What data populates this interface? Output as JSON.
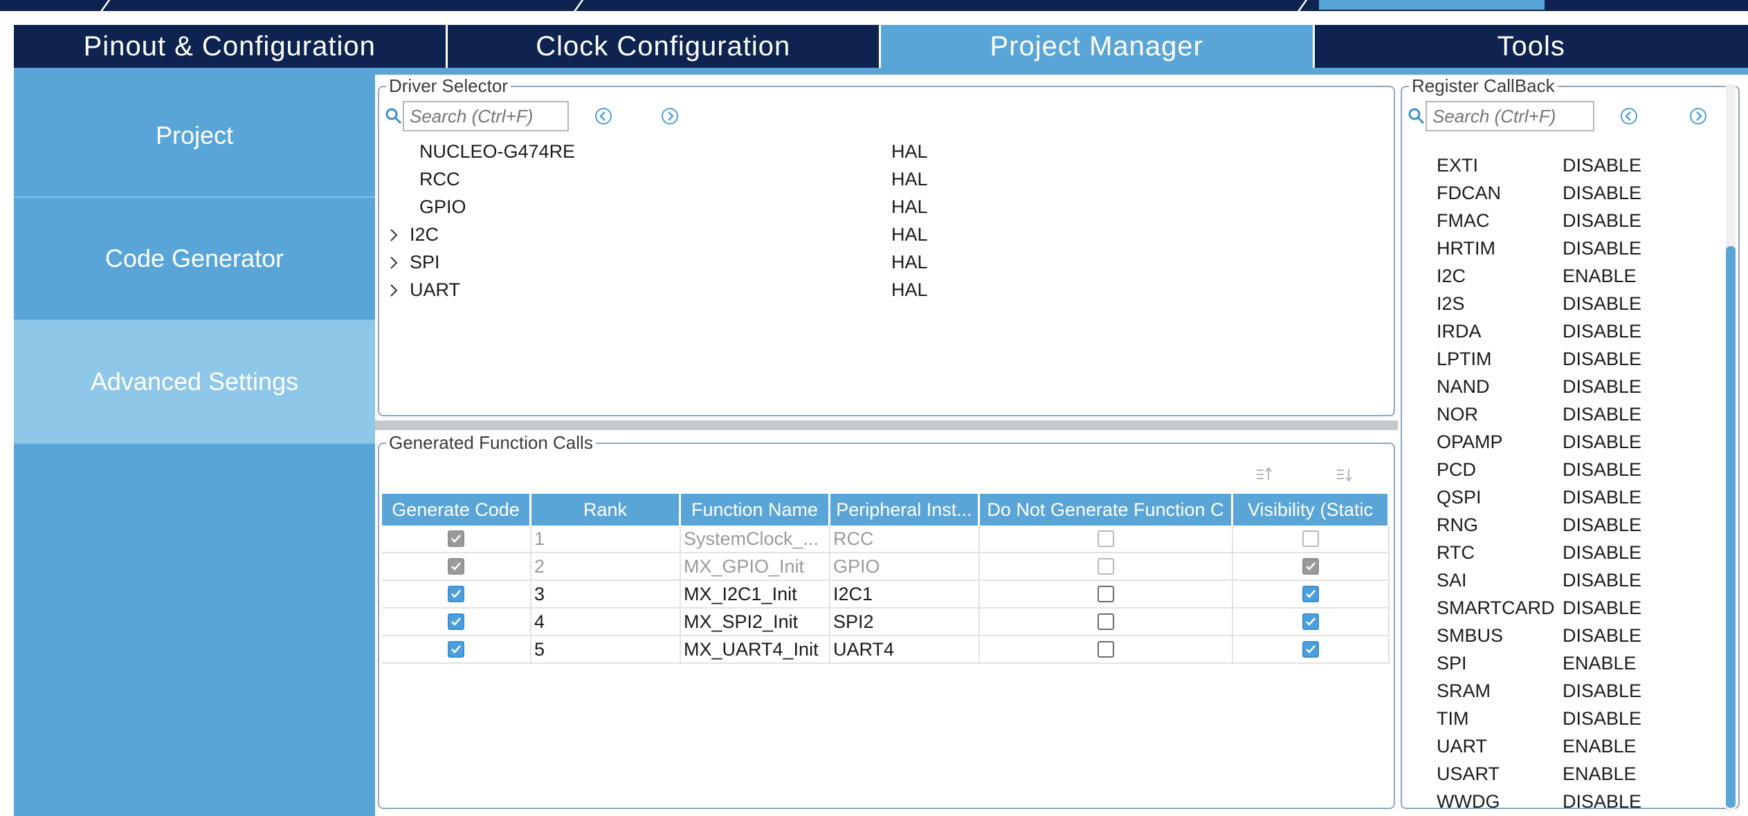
{
  "tabs": [
    {
      "label": "Pinout & Configuration",
      "active": false
    },
    {
      "label": "Clock Configuration",
      "active": false
    },
    {
      "label": "Project Manager",
      "active": true
    },
    {
      "label": "Tools",
      "active": false
    }
  ],
  "left_nav": [
    {
      "label": "Project",
      "active": false
    },
    {
      "label": "Code Generator",
      "active": false
    },
    {
      "label": "Advanced Settings",
      "active": true
    }
  ],
  "driver_selector": {
    "title": "Driver Selector",
    "search_placeholder": "Search (Ctrl+F)",
    "rows": [
      {
        "name": "NUCLEO-G474RE",
        "value": "HAL",
        "expandable": false
      },
      {
        "name": "RCC",
        "value": "HAL",
        "expandable": false
      },
      {
        "name": "GPIO",
        "value": "HAL",
        "expandable": false
      },
      {
        "name": "I2C",
        "value": "HAL",
        "expandable": true
      },
      {
        "name": "SPI",
        "value": "HAL",
        "expandable": true
      },
      {
        "name": "UART",
        "value": "HAL",
        "expandable": true
      }
    ]
  },
  "generated_calls": {
    "title": "Generated Function Calls",
    "columns": [
      "Generate Code",
      "Rank",
      "Function Name",
      "Peripheral Inst...",
      "Do Not Generate Function C",
      "Visibility (Static"
    ],
    "rows": [
      {
        "generate": true,
        "rank": "1",
        "function": "SystemClock_...",
        "peripheral": "RCC",
        "do_not_generate": false,
        "visibility": false,
        "disabled": true
      },
      {
        "generate": true,
        "rank": "2",
        "function": "MX_GPIO_Init",
        "peripheral": "GPIO",
        "do_not_generate": false,
        "visibility": true,
        "disabled": true
      },
      {
        "generate": true,
        "rank": "3",
        "function": "MX_I2C1_Init",
        "peripheral": "I2C1",
        "do_not_generate": false,
        "visibility": true,
        "disabled": false
      },
      {
        "generate": true,
        "rank": "4",
        "function": "MX_SPI2_Init",
        "peripheral": "SPI2",
        "do_not_generate": false,
        "visibility": true,
        "disabled": false
      },
      {
        "generate": true,
        "rank": "5",
        "function": "MX_UART4_Init",
        "peripheral": "UART4",
        "do_not_generate": false,
        "visibility": true,
        "disabled": false
      }
    ]
  },
  "register_callback": {
    "title": "Register CallBack",
    "search_placeholder": "Search (Ctrl+F)",
    "rows": [
      {
        "name": "EXTI",
        "value": "DISABLE"
      },
      {
        "name": "FDCAN",
        "value": "DISABLE"
      },
      {
        "name": "FMAC",
        "value": "DISABLE"
      },
      {
        "name": "HRTIM",
        "value": "DISABLE"
      },
      {
        "name": "I2C",
        "value": "ENABLE"
      },
      {
        "name": "I2S",
        "value": "DISABLE"
      },
      {
        "name": "IRDA",
        "value": "DISABLE"
      },
      {
        "name": "LPTIM",
        "value": "DISABLE"
      },
      {
        "name": "NAND",
        "value": "DISABLE"
      },
      {
        "name": "NOR",
        "value": "DISABLE"
      },
      {
        "name": "OPAMP",
        "value": "DISABLE"
      },
      {
        "name": "PCD",
        "value": "DISABLE"
      },
      {
        "name": "QSPI",
        "value": "DISABLE"
      },
      {
        "name": "RNG",
        "value": "DISABLE"
      },
      {
        "name": "RTC",
        "value": "DISABLE"
      },
      {
        "name": "SAI",
        "value": "DISABLE"
      },
      {
        "name": "SMARTCARD",
        "value": "DISABLE"
      },
      {
        "name": "SMBUS",
        "value": "DISABLE"
      },
      {
        "name": "SPI",
        "value": "ENABLE"
      },
      {
        "name": "SRAM",
        "value": "DISABLE"
      },
      {
        "name": "TIM",
        "value": "DISABLE"
      },
      {
        "name": "UART",
        "value": "ENABLE"
      },
      {
        "name": "USART",
        "value": "ENABLE"
      },
      {
        "name": "WWDG",
        "value": "DISABLE"
      }
    ]
  },
  "colors": {
    "navy": "#0f2350",
    "accent": "#5aa5d8",
    "accent_light": "#8fc7e8",
    "checkbox_blue": "#4a9fdc"
  }
}
